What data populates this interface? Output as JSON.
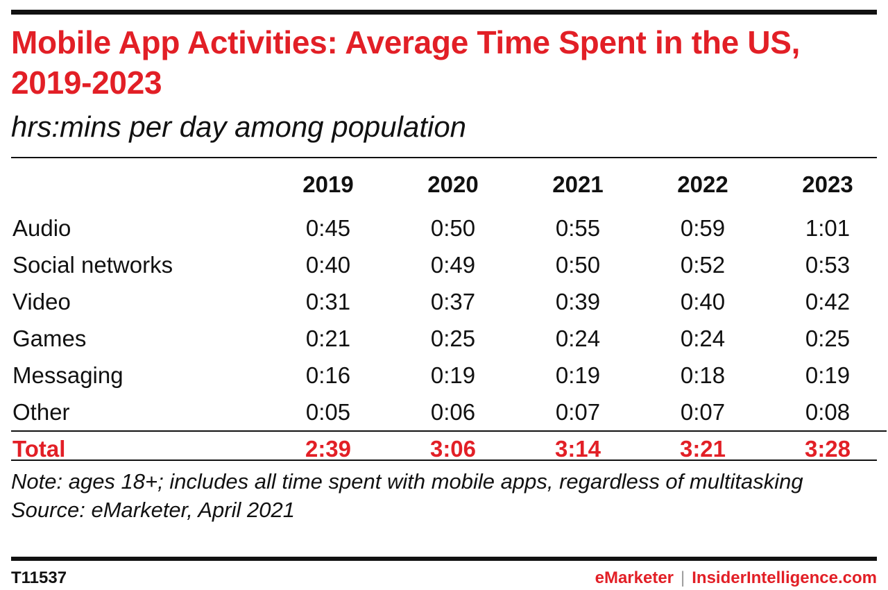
{
  "title": "Mobile App Activities: Average Time Spent in the US, 2019-2023",
  "subtitle": "hrs:mins per day among population",
  "chart_data": {
    "type": "table",
    "title": "Mobile App Activities: Average Time Spent in the US, 2019-2023",
    "subtitle": "hrs:mins per day among population",
    "columns": [
      "2019",
      "2020",
      "2021",
      "2022",
      "2023"
    ],
    "rows": [
      {
        "label": "Audio",
        "values": [
          "0:45",
          "0:50",
          "0:55",
          "0:59",
          "1:01"
        ]
      },
      {
        "label": "Social networks",
        "values": [
          "0:40",
          "0:49",
          "0:50",
          "0:52",
          "0:53"
        ]
      },
      {
        "label": "Video",
        "values": [
          "0:31",
          "0:37",
          "0:39",
          "0:40",
          "0:42"
        ]
      },
      {
        "label": "Games",
        "values": [
          "0:21",
          "0:25",
          "0:24",
          "0:24",
          "0:25"
        ]
      },
      {
        "label": "Messaging",
        "values": [
          "0:16",
          "0:19",
          "0:19",
          "0:18",
          "0:19"
        ]
      },
      {
        "label": "Other",
        "values": [
          "0:05",
          "0:06",
          "0:07",
          "0:07",
          "0:08"
        ]
      }
    ],
    "total": {
      "label": "Total",
      "values": [
        "2:39",
        "3:06",
        "3:14",
        "3:21",
        "3:28"
      ]
    }
  },
  "note": "Note: ages 18+; includes all time spent with mobile apps, regardless of multitasking",
  "source": "Source: eMarketer, April 2021",
  "footer": {
    "chart_id": "T11537",
    "brand_emarketer": "eMarketer",
    "brand_separator": "|",
    "brand_insider": "InsiderIntelligence.com"
  },
  "colors": {
    "accent": "#e21f26",
    "text": "#111111",
    "rule": "#111111"
  }
}
